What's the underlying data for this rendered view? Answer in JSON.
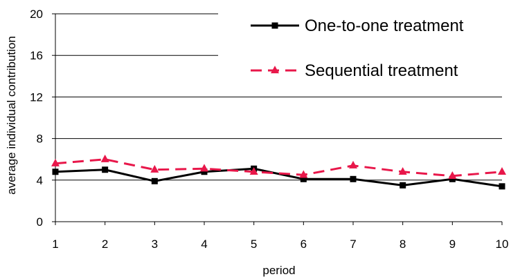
{
  "chart_data": {
    "type": "line",
    "xlabel": "period",
    "ylabel": "average individual contribution",
    "x": [
      1,
      2,
      3,
      4,
      5,
      6,
      7,
      8,
      9,
      10
    ],
    "x_tick_labels": [
      "1",
      "2",
      "3",
      "4",
      "5",
      "6",
      "7",
      "8",
      "9",
      "10"
    ],
    "ylim": [
      0,
      20
    ],
    "y_ticks": [
      0,
      4,
      8,
      12,
      16,
      20
    ],
    "y_tick_labels": [
      "0",
      "4",
      "8",
      "12",
      "16",
      "20"
    ],
    "grid": "horizontal",
    "legend_position": "top-right",
    "series": [
      {
        "name": "One-to-one treatment",
        "values": [
          4.8,
          5.0,
          3.9,
          4.8,
          5.1,
          4.1,
          4.1,
          3.5,
          4.1,
          3.4
        ],
        "color": "#000000",
        "line_style": "solid",
        "marker": "square"
      },
      {
        "name": "Sequential treatment",
        "values": [
          5.6,
          6.0,
          5.0,
          5.1,
          4.8,
          4.5,
          5.4,
          4.8,
          4.4,
          4.8
        ],
        "color": "#e8174a",
        "line_style": "dashed",
        "marker": "triangle"
      }
    ]
  }
}
